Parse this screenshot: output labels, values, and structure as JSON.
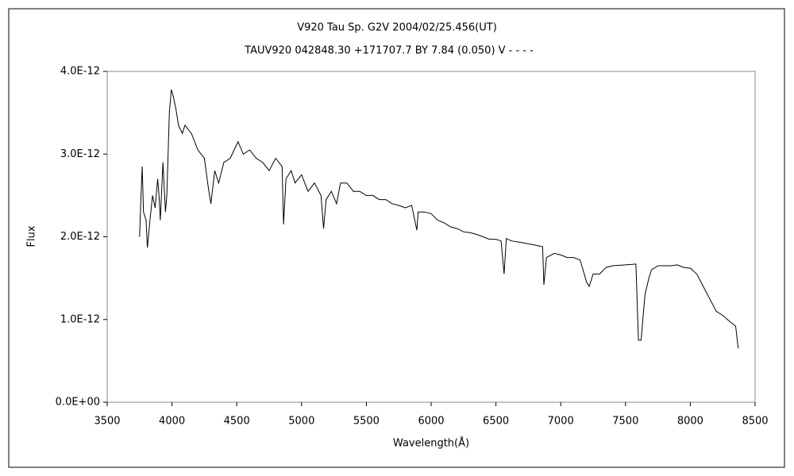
{
  "chart_data": {
    "type": "line",
    "title": "V920 Tau    Sp. G2V    2004/02/25.456(UT)",
    "subtitle": "TAUV920 042848.30 +171707.7 BY 7.84 (0.050) V - - - -",
    "xlabel": "Wavelength(Å)",
    "ylabel": "Flux",
    "xlim": [
      3500,
      8500
    ],
    "xticks": [
      3500,
      4000,
      4500,
      5000,
      5500,
      6000,
      6500,
      7000,
      7500,
      8000,
      8500
    ],
    "ylim": [
      0,
      4e-12
    ],
    "yticks": [
      {
        "value": 0,
        "label": "0.0E+00"
      },
      {
        "value": 1e-12,
        "label": "1.0E-12"
      },
      {
        "value": 2e-12,
        "label": "2.0E-12"
      },
      {
        "value": 3e-12,
        "label": "3.0E-12"
      },
      {
        "value": 4e-12,
        "label": "4.0E-12"
      }
    ],
    "color": "#000000",
    "x": [
      3750,
      3760,
      3770,
      3780,
      3800,
      3810,
      3830,
      3850,
      3870,
      3890,
      3900,
      3910,
      3930,
      3950,
      3960,
      3970,
      3980,
      3995,
      4010,
      4030,
      4050,
      4080,
      4100,
      4150,
      4200,
      4250,
      4280,
      4300,
      4330,
      4360,
      4400,
      4450,
      4480,
      4510,
      4550,
      4600,
      4650,
      4700,
      4750,
      4800,
      4850,
      4861,
      4880,
      4920,
      4950,
      5000,
      5050,
      5100,
      5150,
      5170,
      5190,
      5230,
      5270,
      5300,
      5350,
      5400,
      5450,
      5500,
      5550,
      5600,
      5650,
      5700,
      5750,
      5800,
      5850,
      5890,
      5900,
      5950,
      6000,
      6050,
      6100,
      6150,
      6200,
      6250,
      6300,
      6350,
      6400,
      6450,
      6500,
      6540,
      6563,
      6580,
      6620,
      6700,
      6800,
      6860,
      6870,
      6890,
      6950,
      7000,
      7050,
      7100,
      7150,
      7200,
      7220,
      7250,
      7300,
      7350,
      7400,
      7500,
      7580,
      7600,
      7620,
      7650,
      7680,
      7700,
      7750,
      7800,
      7850,
      7900,
      7950,
      8000,
      8050,
      8100,
      8150,
      8200,
      8250,
      8300,
      8350,
      8370
    ],
    "values": [
      2e-12,
      2.45e-12,
      2.85e-12,
      2.3e-12,
      2.2e-12,
      1.87e-12,
      2.2e-12,
      2.5e-12,
      2.35e-12,
      2.7e-12,
      2.5e-12,
      2.2e-12,
      2.9e-12,
      2.3e-12,
      2.5e-12,
      3e-12,
      3.5e-12,
      3.78e-12,
      3.7e-12,
      3.55e-12,
      3.35e-12,
      3.25e-12,
      3.35e-12,
      3.25e-12,
      3.05e-12,
      2.95e-12,
      2.6e-12,
      2.4e-12,
      2.8e-12,
      2.65e-12,
      2.9e-12,
      2.95e-12,
      3.05e-12,
      3.15e-12,
      3e-12,
      3.05e-12,
      2.95e-12,
      2.9e-12,
      2.8e-12,
      2.95e-12,
      2.85e-12,
      2.15e-12,
      2.7e-12,
      2.8e-12,
      2.65e-12,
      2.75e-12,
      2.55e-12,
      2.65e-12,
      2.5e-12,
      2.1e-12,
      2.45e-12,
      2.55e-12,
      2.4e-12,
      2.65e-12,
      2.65e-12,
      2.55e-12,
      2.55e-12,
      2.5e-12,
      2.5e-12,
      2.45e-12,
      2.45e-12,
      2.4e-12,
      2.38e-12,
      2.35e-12,
      2.38e-12,
      2.08e-12,
      2.3e-12,
      2.3e-12,
      2.28e-12,
      2.2e-12,
      2.17e-12,
      2.12e-12,
      2.1e-12,
      2.06e-12,
      2.05e-12,
      2.03e-12,
      2e-12,
      1.97e-12,
      1.97e-12,
      1.95e-12,
      1.55e-12,
      1.98e-12,
      1.95e-12,
      1.93e-12,
      1.9e-12,
      1.88e-12,
      1.42e-12,
      1.75e-12,
      1.8e-12,
      1.78e-12,
      1.75e-12,
      1.75e-12,
      1.72e-12,
      1.45e-12,
      1.4e-12,
      1.55e-12,
      1.55e-12,
      1.63e-12,
      1.65e-12,
      1.66e-12,
      1.67e-12,
      7.5e-13,
      7.5e-13,
      1.3e-12,
      1.5e-12,
      1.6e-12,
      1.65e-12,
      1.65e-12,
      1.65e-12,
      1.66e-12,
      1.63e-12,
      1.62e-12,
      1.55e-12,
      1.4e-12,
      1.25e-12,
      1.1e-12,
      1.05e-12,
      9.8e-13,
      9.2e-13,
      6.5e-13
    ]
  }
}
